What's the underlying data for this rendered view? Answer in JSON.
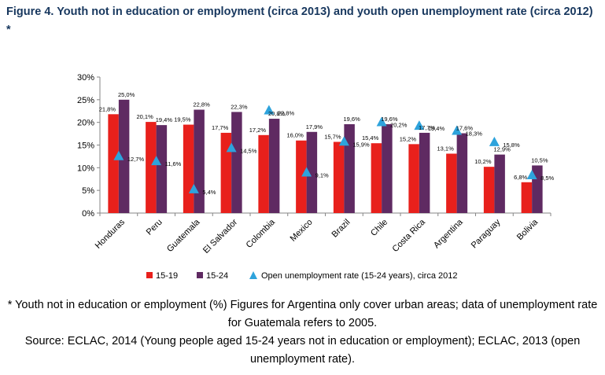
{
  "figure": {
    "title": "Figure 4. Youth not in education or employment (circa 2013) and youth open unemployment rate (circa 2012) *",
    "notes": [
      "* Youth not in education or employment (%) Figures for Argentina only cover urban areas; data of unemployment rate for Guatemala refers to 2005.",
      "Source: ECLAC, 2014 (Young people aged 15-24 years not in education or employment); ECLAC, 2013 (open unemployment rate)."
    ]
  },
  "chart_data": {
    "type": "bar",
    "title": "",
    "xlabel": "",
    "ylabel": "",
    "ylim": [
      0,
      30
    ],
    "yticks": [
      0,
      5,
      10,
      15,
      20,
      25,
      30
    ],
    "ytick_labels": [
      "0%",
      "5%",
      "10%",
      "15%",
      "20%",
      "25%",
      "30%"
    ],
    "grid": false,
    "legend_position": "bottom",
    "categories": [
      "Honduras",
      "Peru",
      "Guatemala",
      "El Salvador",
      "Colombia",
      "Mexico",
      "Brazil",
      "Chile",
      "Costa Rica",
      "Argentina",
      "Paraguay",
      "Bolivia"
    ],
    "series": [
      {
        "name": "15-19",
        "kind": "bar",
        "color": "#e8201c",
        "values": [
          21.8,
          20.1,
          19.5,
          17.7,
          17.2,
          16.0,
          15.7,
          15.4,
          15.2,
          13.1,
          10.2,
          6.8
        ],
        "labels": [
          "21,8%",
          "20,1%",
          "19,5%",
          "17,7%",
          "17,2%",
          "16,0%",
          "15,7%",
          "15,4%",
          "15,2%",
          "13,1%",
          "10,2%",
          "6,8%"
        ]
      },
      {
        "name": "15-24",
        "kind": "bar",
        "color": "#5f2a62",
        "values": [
          25.0,
          19.4,
          22.8,
          22.3,
          20.8,
          17.9,
          19.6,
          19.6,
          17.7,
          17.6,
          12.9,
          10.5
        ],
        "labels": [
          "25,0%",
          "19,4%",
          "22,8%",
          "22,3%",
          "20,8%",
          "17,9%",
          "19,6%",
          "19,6%",
          "17,7%",
          "17,6%",
          "12,9%",
          "10,5%"
        ]
      },
      {
        "name": "Open unemployment rate (15-24 years), circa 2012",
        "kind": "marker",
        "color": "#2ea3dc",
        "values": [
          12.7,
          11.6,
          5.4,
          14.5,
          22.8,
          9.1,
          15.9,
          20.2,
          19.4,
          18.3,
          15.8,
          8.5
        ],
        "labels": [
          "12,7%",
          "11,6%",
          "5,4%",
          "14,5%",
          "22,8%",
          "9,1%",
          "15,9%",
          "20,2%",
          "19,4%",
          "18,3%",
          "15,8%",
          "8,5%"
        ]
      }
    ]
  }
}
